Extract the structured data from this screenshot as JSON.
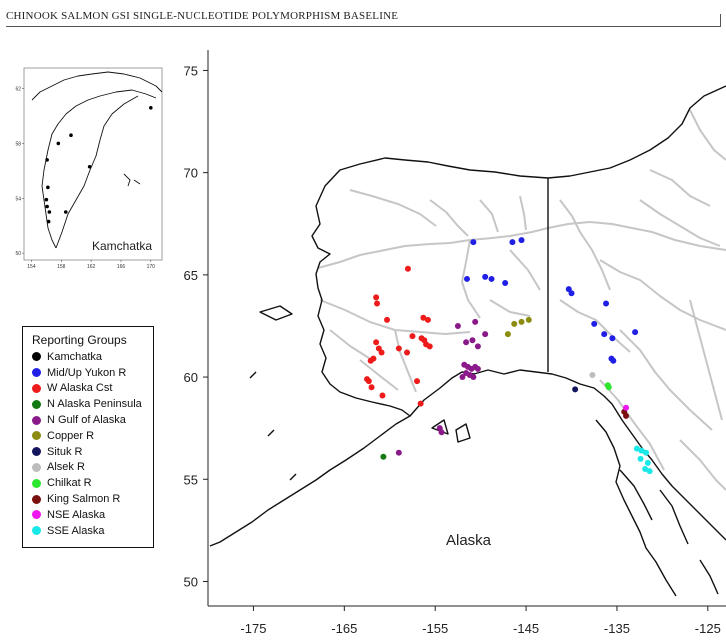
{
  "header": {
    "title": "CHINOOK SALMON GSI SINGLE-NUCLEOTIDE POLYMORPHISM BASELINE"
  },
  "main_map": {
    "label": "Alaska",
    "lat_ticks": [
      75,
      70,
      65,
      60,
      55,
      50
    ],
    "lon_ticks": [
      -175,
      -165,
      -155,
      -145,
      -135,
      -125
    ],
    "lat_range": [
      48.8,
      76
    ],
    "lon_range": [
      -180,
      -123
    ],
    "sites": [
      {
        "group": "Mid/Up Yukon R",
        "lon": -150.8,
        "lat": 66.6
      },
      {
        "group": "Mid/Up Yukon R",
        "lon": -146.5,
        "lat": 66.6
      },
      {
        "group": "Mid/Up Yukon R",
        "lon": -145.5,
        "lat": 66.7
      },
      {
        "group": "Mid/Up Yukon R",
        "lon": -151.5,
        "lat": 64.8
      },
      {
        "group": "Mid/Up Yukon R",
        "lon": -149.5,
        "lat": 64.9
      },
      {
        "group": "Mid/Up Yukon R",
        "lon": -148.8,
        "lat": 64.8
      },
      {
        "group": "Mid/Up Yukon R",
        "lon": -147.3,
        "lat": 64.6
      },
      {
        "group": "Mid/Up Yukon R",
        "lon": -140.3,
        "lat": 64.3
      },
      {
        "group": "Mid/Up Yukon R",
        "lon": -140.0,
        "lat": 64.1
      },
      {
        "group": "Mid/Up Yukon R",
        "lon": -136.2,
        "lat": 63.6
      },
      {
        "group": "Mid/Up Yukon R",
        "lon": -137.5,
        "lat": 62.6
      },
      {
        "group": "Mid/Up Yukon R",
        "lon": -136.4,
        "lat": 62.1
      },
      {
        "group": "Mid/Up Yukon R",
        "lon": -135.5,
        "lat": 61.9
      },
      {
        "group": "Mid/Up Yukon R",
        "lon": -133.0,
        "lat": 62.2
      },
      {
        "group": "Mid/Up Yukon R",
        "lon": -135.6,
        "lat": 60.9
      },
      {
        "group": "Mid/Up Yukon R",
        "lon": -135.4,
        "lat": 60.8
      },
      {
        "group": "W Alaska Cst",
        "lon": -158.0,
        "lat": 65.3
      },
      {
        "group": "W Alaska Cst",
        "lon": -161.5,
        "lat": 63.9
      },
      {
        "group": "W Alaska Cst",
        "lon": -161.4,
        "lat": 63.6
      },
      {
        "group": "W Alaska Cst",
        "lon": -160.3,
        "lat": 62.8
      },
      {
        "group": "W Alaska Cst",
        "lon": -156.3,
        "lat": 62.9
      },
      {
        "group": "W Alaska Cst",
        "lon": -155.8,
        "lat": 62.8
      },
      {
        "group": "W Alaska Cst",
        "lon": -157.5,
        "lat": 62.0
      },
      {
        "group": "W Alaska Cst",
        "lon": -156.5,
        "lat": 61.9
      },
      {
        "group": "W Alaska Cst",
        "lon": -156.2,
        "lat": 61.8
      },
      {
        "group": "W Alaska Cst",
        "lon": -156.0,
        "lat": 61.6
      },
      {
        "group": "W Alaska Cst",
        "lon": -155.6,
        "lat": 61.5
      },
      {
        "group": "W Alaska Cst",
        "lon": -158.1,
        "lat": 61.2
      },
      {
        "group": "W Alaska Cst",
        "lon": -161.5,
        "lat": 61.7
      },
      {
        "group": "W Alaska Cst",
        "lon": -161.2,
        "lat": 61.4
      },
      {
        "group": "W Alaska Cst",
        "lon": -160.9,
        "lat": 61.2
      },
      {
        "group": "W Alaska Cst",
        "lon": -159.0,
        "lat": 61.4
      },
      {
        "group": "W Alaska Cst",
        "lon": -162.1,
        "lat": 60.8
      },
      {
        "group": "W Alaska Cst",
        "lon": -161.8,
        "lat": 60.9
      },
      {
        "group": "W Alaska Cst",
        "lon": -162.5,
        "lat": 59.9
      },
      {
        "group": "W Alaska Cst",
        "lon": -162.3,
        "lat": 59.8
      },
      {
        "group": "W Alaska Cst",
        "lon": -162.0,
        "lat": 59.5
      },
      {
        "group": "W Alaska Cst",
        "lon": -160.8,
        "lat": 59.1
      },
      {
        "group": "W Alaska Cst",
        "lon": -157.0,
        "lat": 59.8
      },
      {
        "group": "W Alaska Cst",
        "lon": -156.6,
        "lat": 58.7
      },
      {
        "group": "N Alaska Peninsula",
        "lon": -160.7,
        "lat": 56.1
      },
      {
        "group": "N Gulf of Alaska",
        "lon": -152.5,
        "lat": 62.5
      },
      {
        "group": "N Gulf of Alaska",
        "lon": -150.6,
        "lat": 62.7
      },
      {
        "group": "N Gulf of Alaska",
        "lon": -149.5,
        "lat": 62.1
      },
      {
        "group": "N Gulf of Alaska",
        "lon": -151.6,
        "lat": 61.7
      },
      {
        "group": "N Gulf of Alaska",
        "lon": -150.9,
        "lat": 61.8
      },
      {
        "group": "N Gulf of Alaska",
        "lon": -150.3,
        "lat": 61.5
      },
      {
        "group": "N Gulf of Alaska",
        "lon": -151.8,
        "lat": 60.6
      },
      {
        "group": "N Gulf of Alaska",
        "lon": -151.4,
        "lat": 60.5
      },
      {
        "group": "N Gulf of Alaska",
        "lon": -151.0,
        "lat": 60.4
      },
      {
        "group": "N Gulf of Alaska",
        "lon": -150.6,
        "lat": 60.5
      },
      {
        "group": "N Gulf of Alaska",
        "lon": -150.3,
        "lat": 60.4
      },
      {
        "group": "N Gulf of Alaska",
        "lon": -151.6,
        "lat": 60.2
      },
      {
        "group": "N Gulf of Alaska",
        "lon": -151.2,
        "lat": 60.1
      },
      {
        "group": "N Gulf of Alaska",
        "lon": -152.0,
        "lat": 60.0
      },
      {
        "group": "N Gulf of Alaska",
        "lon": -150.8,
        "lat": 60.0
      },
      {
        "group": "N Gulf of Alaska",
        "lon": -154.5,
        "lat": 57.5
      },
      {
        "group": "N Gulf of Alaska",
        "lon": -154.3,
        "lat": 57.3
      },
      {
        "group": "N Gulf of Alaska",
        "lon": -159.0,
        "lat": 56.3
      },
      {
        "group": "Copper R",
        "lon": -146.3,
        "lat": 62.6
      },
      {
        "group": "Copper R",
        "lon": -145.5,
        "lat": 62.7
      },
      {
        "group": "Copper R",
        "lon": -144.7,
        "lat": 62.8
      },
      {
        "group": "Copper R",
        "lon": -147.0,
        "lat": 62.1
      },
      {
        "group": "Situk R",
        "lon": -139.6,
        "lat": 59.4
      },
      {
        "group": "Alsek R",
        "lon": -137.7,
        "lat": 60.1
      },
      {
        "group": "Chilkat R",
        "lon": -136.0,
        "lat": 59.6
      },
      {
        "group": "Chilkat R",
        "lon": -135.9,
        "lat": 59.5
      },
      {
        "group": "King Salmon R",
        "lon": -134.2,
        "lat": 58.3
      },
      {
        "group": "King Salmon R",
        "lon": -134.0,
        "lat": 58.1
      },
      {
        "group": "NSE Alaska",
        "lon": -134.0,
        "lat": 58.5
      },
      {
        "group": "SSE Alaska",
        "lon": -132.8,
        "lat": 56.5
      },
      {
        "group": "SSE Alaska",
        "lon": -132.3,
        "lat": 56.4
      },
      {
        "group": "SSE Alaska",
        "lon": -131.8,
        "lat": 56.3
      },
      {
        "group": "SSE Alaska",
        "lon": -132.4,
        "lat": 56.0
      },
      {
        "group": "SSE Alaska",
        "lon": -131.6,
        "lat": 55.8
      },
      {
        "group": "SSE Alaska",
        "lon": -131.9,
        "lat": 55.5
      },
      {
        "group": "SSE Alaska",
        "lon": -131.4,
        "lat": 55.4
      }
    ]
  },
  "inset_map": {
    "label": "Kamchatka",
    "lat_ticks": [
      62,
      58,
      54,
      50
    ],
    "lon_ticks": [
      154,
      158,
      162,
      166,
      170
    ],
    "lat_range": [
      49.5,
      63.5
    ],
    "lon_range": [
      153,
      171.5
    ],
    "sites": [
      {
        "lon": 170.0,
        "lat": 60.6
      },
      {
        "lon": 159.3,
        "lat": 58.6
      },
      {
        "lon": 157.6,
        "lat": 58.0
      },
      {
        "lon": 156.1,
        "lat": 56.8
      },
      {
        "lon": 161.8,
        "lat": 56.3
      },
      {
        "lon": 156.2,
        "lat": 54.8
      },
      {
        "lon": 156.0,
        "lat": 53.9
      },
      {
        "lon": 156.1,
        "lat": 53.4
      },
      {
        "lon": 156.4,
        "lat": 53.0
      },
      {
        "lon": 158.6,
        "lat": 53.0
      },
      {
        "lon": 156.3,
        "lat": 52.3
      }
    ]
  },
  "legend": {
    "title": "Reporting Groups",
    "items": [
      {
        "label": "Kamchatka",
        "color": "#000000"
      },
      {
        "label": "Mid/Up Yukon R",
        "color": "#1f1fe6"
      },
      {
        "label": "W Alaska Cst",
        "color": "#ee1b1b"
      },
      {
        "label": "N Alaska Peninsula",
        "color": "#137a13"
      },
      {
        "label": "N Gulf of Alaska",
        "color": "#8a1a8a"
      },
      {
        "label": "Copper R",
        "color": "#8c8c10"
      },
      {
        "label": "Situk R",
        "color": "#14145e"
      },
      {
        "label": "Alsek R",
        "color": "#bdbdbd"
      },
      {
        "label": "Chilkat R",
        "color": "#2ee62e"
      },
      {
        "label": "King Salmon R",
        "color": "#7a0f0f"
      },
      {
        "label": "NSE Alaska",
        "color": "#ee18ee"
      },
      {
        "label": "SSE Alaska",
        "color": "#19e8e8"
      }
    ]
  }
}
